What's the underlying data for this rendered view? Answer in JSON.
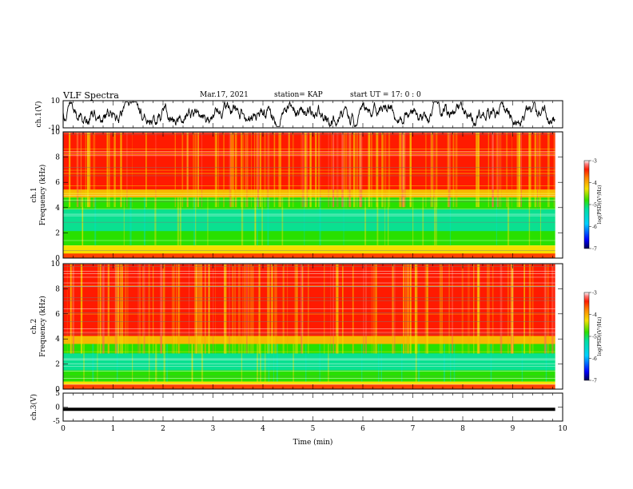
{
  "header": {
    "title": "VLF Spectra",
    "date": "Mar.17, 2021",
    "station": "station= KAP",
    "start": "start UT =   17: 0 : 0"
  },
  "chart_data": [
    {
      "type": "line",
      "panel": "ch1-waveform",
      "ylabel": "ch.1(V)",
      "ylim": [
        -10,
        10
      ],
      "yticks": [
        "10",
        "-10"
      ],
      "x_range_min": [
        0,
        9.85
      ],
      "noise_level_v": 3.5
    },
    {
      "type": "heatmap",
      "panel": "ch1-spectrogram",
      "title": "ch.1",
      "ylabel": "Frequency (kHz)",
      "ylim": [
        0,
        10
      ],
      "yticks": [
        "0",
        "2",
        "4",
        "6",
        "8",
        "10"
      ],
      "x_range_min": [
        0,
        9.85
      ],
      "green_band_khz": [
        1.0,
        4.8
      ],
      "colorbar": {
        "label": "log(PSD)(V²/Hz)",
        "range": [
          -7,
          -3
        ],
        "ticks": [
          "-3",
          "-4",
          "-5",
          "-6",
          "-7"
        ]
      }
    },
    {
      "type": "heatmap",
      "panel": "ch2-spectrogram",
      "title": "ch.2",
      "ylabel": "Frequency (kHz)",
      "ylim": [
        0,
        10
      ],
      "yticks": [
        "0",
        "2",
        "4",
        "6",
        "8",
        "10"
      ],
      "x_range_min": [
        0,
        9.85
      ],
      "green_band_khz": [
        0.6,
        3.6
      ],
      "colorbar": {
        "label": "log(PSD)(V²/Hz)",
        "range": [
          -7,
          -3
        ],
        "ticks": [
          "-3",
          "-4",
          "-5",
          "-6",
          "-7"
        ]
      }
    },
    {
      "type": "line",
      "panel": "ch3-waveform",
      "ylabel": "ch.3(V)",
      "ylim": [
        -5,
        5
      ],
      "yticks": [
        "5",
        "0",
        "-5"
      ],
      "x_range_min": [
        0,
        9.85
      ],
      "level_v": -0.8
    }
  ],
  "x_axis": {
    "label": "Time (min)",
    "range": [
      0,
      10
    ],
    "ticks": [
      "0",
      "1",
      "2",
      "3",
      "4",
      "5",
      "6",
      "7",
      "8",
      "9",
      "10"
    ]
  },
  "colors": {
    "red": "#ff1a00",
    "yellow": "#f5e000",
    "green": "#28e000",
    "cyan": "#00e0c0",
    "waveform": "#000000"
  }
}
